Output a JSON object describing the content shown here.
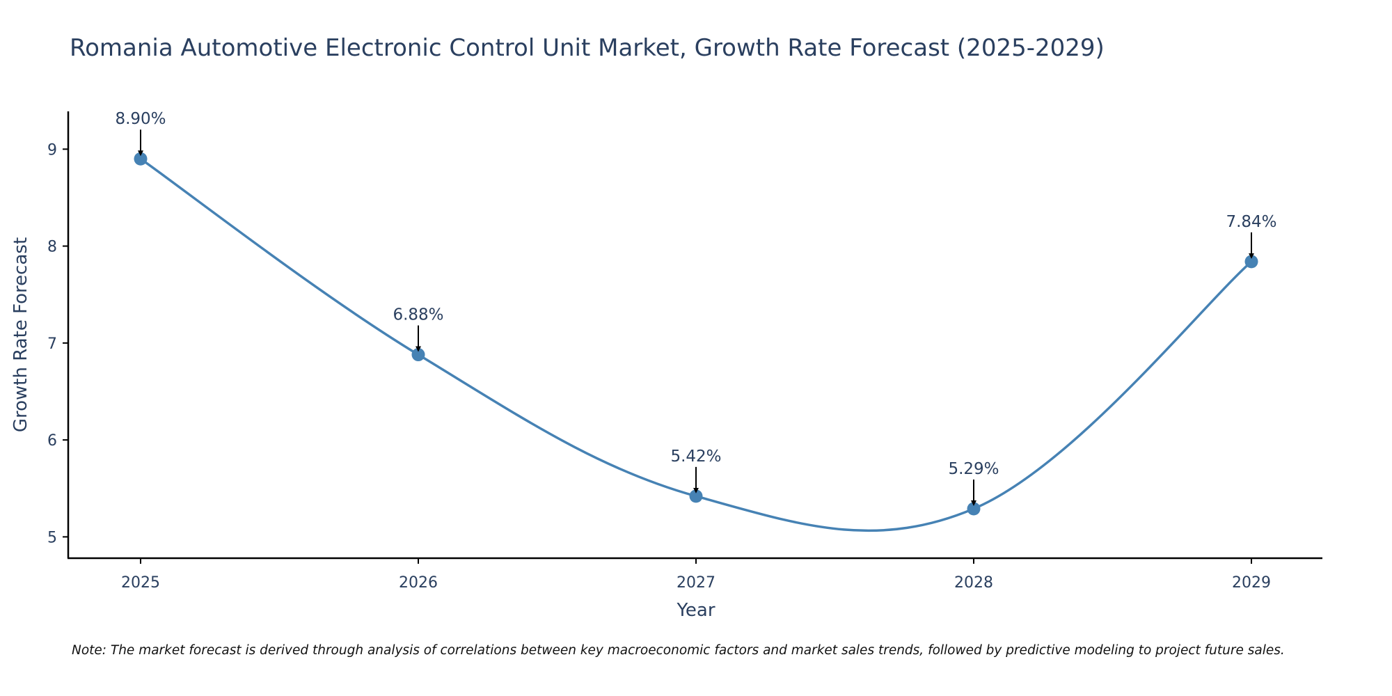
{
  "chart_data": {
    "type": "line",
    "title": "Romania Automotive Electronic Control Unit Market, Growth Rate Forecast (2025-2029)",
    "xlabel": "Year",
    "ylabel": "Growth Rate Forecast",
    "categories": [
      "2025",
      "2026",
      "2027",
      "2028",
      "2029"
    ],
    "series": [
      {
        "name": "Growth Rate Forecast",
        "values": [
          8.9,
          6.88,
          5.42,
          5.29,
          7.84
        ],
        "labels": [
          "8.90%",
          "6.88%",
          "5.42%",
          "5.29%",
          "7.84%"
        ]
      }
    ],
    "yticks": [
      "5",
      "6",
      "7",
      "8",
      "9"
    ],
    "ylim": [
      4.78,
      9.39
    ],
    "grid": false,
    "line_shape": "spline",
    "note": "Note: The market forecast is derived through analysis of correlations between key macroeconomic factors and market sales trends, followed by predictive modeling to project future sales."
  },
  "colors": {
    "line": "#4682b4",
    "marker": "#4682b4",
    "arrow": "#000000",
    "axis": "#000000",
    "text": "#2a3f5f",
    "background": "#ffffff"
  }
}
